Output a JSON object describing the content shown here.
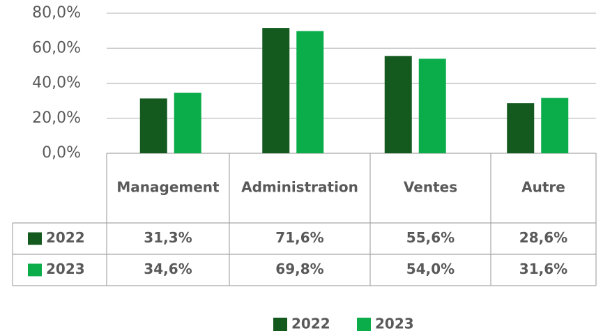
{
  "chart_data": {
    "type": "bar",
    "categories": [
      "Management",
      "Administration",
      "Ventes",
      "Autre"
    ],
    "series": [
      {
        "name": "2022",
        "color": "#145a1f",
        "values": [
          31.3,
          71.6,
          55.6,
          28.6
        ],
        "value_labels": [
          "31,3%",
          "71,6%",
          "55,6%",
          "28,6%"
        ]
      },
      {
        "name": "2023",
        "color": "#0bad4b",
        "values": [
          34.6,
          69.8,
          54.0,
          31.6
        ],
        "value_labels": [
          "34,6%",
          "69,8%",
          "54,0%",
          "31,6%"
        ]
      }
    ],
    "ylim": [
      0,
      80
    ],
    "yticks": [
      {
        "value": 0,
        "label": "0,0%"
      },
      {
        "value": 20,
        "label": "20,0%"
      },
      {
        "value": 40,
        "label": "40,0%"
      },
      {
        "value": 60,
        "label": "60,0%"
      },
      {
        "value": 80,
        "label": "80,0%"
      }
    ],
    "grid": true,
    "legend": "bottom"
  }
}
